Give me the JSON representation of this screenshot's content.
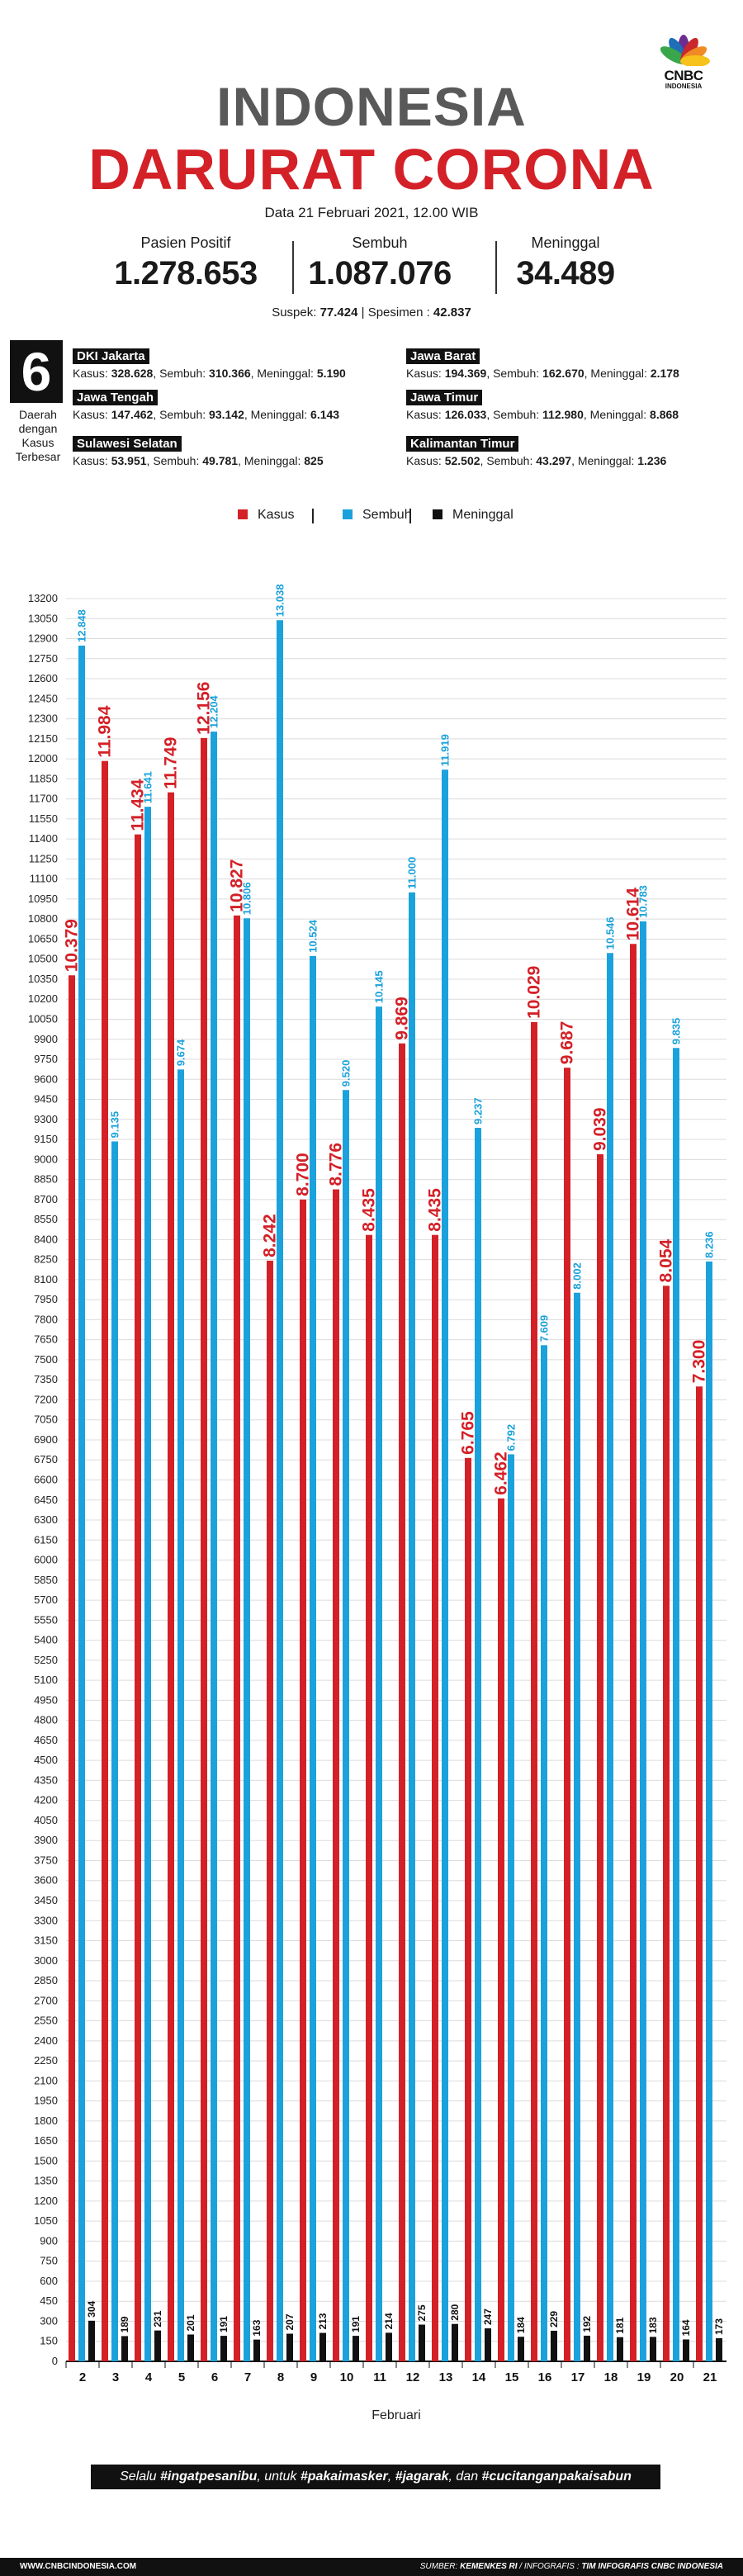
{
  "header": {
    "logo_text": "CNBC",
    "logo_sub": "INDONESIA",
    "title_line1": "INDONESIA",
    "title_line2": "DARURAT CORONA",
    "date": "Data 21 Februari 2021, 12.00 WIB"
  },
  "stats": [
    {
      "label": "Pasien Positif",
      "value": "1.278.653"
    },
    {
      "label": "Sembuh",
      "value": "1.087.076"
    },
    {
      "label": "Meninggal",
      "value": "34.489"
    }
  ],
  "suspek": {
    "label": "Suspek:",
    "value": "77.424",
    "sep": "|",
    "spesimen_label": "Spesimen :",
    "spesimen_value": "42.837"
  },
  "regions_block": {
    "count": "6",
    "caption_lines": [
      "Daerah",
      "dengan",
      "Kasus",
      "Terbesar"
    ],
    "regions": [
      {
        "name": "DKI Jakarta",
        "kasus_label": "Kasus:",
        "kasus": "328.628",
        "sembuh_label": "Sembuh:",
        "sembuh": "310.366",
        "meninggal_label": "Meninggal:",
        "meninggal": "5.190"
      },
      {
        "name": "Jawa Barat",
        "kasus_label": "Kasus:",
        "kasus": "194.369",
        "sembuh_label": "Sembuh:",
        "sembuh": "162.670",
        "meninggal_label": "Meninggal:",
        "meninggal": "2.178"
      },
      {
        "name": "Jawa Tengah",
        "kasus_label": "Kasus:",
        "kasus": "147.462",
        "sembuh_label": "Sembuh:",
        "sembuh": "93.142",
        "meninggal_label": "Meninggal:",
        "meninggal": "6.143"
      },
      {
        "name": "Jawa Timur",
        "kasus_label": "Kasus:",
        "kasus": "126.033",
        "sembuh_label": "Sembuh:",
        "sembuh": "112.980",
        "meninggal_label": "Meninggal:",
        "meninggal": "8.868"
      },
      {
        "name": "Sulawesi Selatan",
        "kasus_label": "Kasus:",
        "kasus": "53.951",
        "sembuh_label": "Sembuh:",
        "sembuh": "49.781",
        "meninggal_label": "Meninggal:",
        "meninggal": "825"
      },
      {
        "name": "Kalimantan Timur",
        "kasus_label": "Kasus:",
        "kasus": "52.502",
        "sembuh_label": "Sembuh:",
        "sembuh": "43.297",
        "meninggal_label": "Meninggal:",
        "meninggal": "1.236"
      }
    ]
  },
  "legend": [
    {
      "name": "Kasus",
      "color": "#d42027"
    },
    {
      "name": "Sembuh",
      "color": "#1ba2dc"
    },
    {
      "name": "Meninggal",
      "color": "#111111"
    }
  ],
  "chart_data": {
    "type": "bar",
    "xlabel": "Februari",
    "ylabel": "",
    "ylim": [
      0,
      13200
    ],
    "ytick_step": 150,
    "grid": true,
    "categories": [
      "2",
      "3",
      "4",
      "5",
      "6",
      "7",
      "8",
      "9",
      "10",
      "11",
      "12",
      "13",
      "14",
      "15",
      "16",
      "17",
      "18",
      "19",
      "20",
      "21"
    ],
    "series": [
      {
        "name": "Kasus",
        "color": "#d42027",
        "values": [
          10379,
          11984,
          11434,
          11749,
          12156,
          10827,
          8242,
          8700,
          8776,
          8435,
          9869,
          8435,
          6765,
          6462,
          10029,
          9687,
          9039,
          10614,
          8054,
          7300
        ],
        "labels": [
          "10.379",
          "11.984",
          "11.434",
          "11.749",
          "12.156",
          "10.827",
          "8.242",
          "8.700",
          "8.776",
          "8.435",
          "9.869",
          "8.435",
          "6.765",
          "6.462",
          "10.029",
          "9.687",
          "9.039",
          "10.614",
          "8.054",
          "7.300"
        ]
      },
      {
        "name": "Sembuh",
        "color": "#1ba2dc",
        "values": [
          12848,
          9135,
          11641,
          9674,
          12204,
          10806,
          13038,
          10524,
          9520,
          10145,
          11000,
          11919,
          9237,
          6792,
          7609,
          8002,
          10546,
          10783,
          9835,
          8236
        ],
        "labels": [
          "12.848",
          "9.135",
          "11.641",
          "9.674",
          "12.204",
          "10.806",
          "13.038",
          "10.524",
          "9.520",
          "10.145",
          "11.000",
          "11.919",
          "9.237",
          "6.792",
          "7.609",
          "8.002",
          "10.546",
          "10.783",
          "9.835",
          "8.236"
        ]
      },
      {
        "name": "Meninggal",
        "color": "#111111",
        "values": [
          304,
          189,
          231,
          201,
          191,
          163,
          207,
          213,
          191,
          214,
          275,
          280,
          247,
          184,
          229,
          192,
          181,
          183,
          164,
          173
        ],
        "labels": [
          "304",
          "189",
          "231",
          "201",
          "191",
          "163",
          "207",
          "213",
          "191",
          "214",
          "275",
          "280",
          "247",
          "184",
          "229",
          "192",
          "181",
          "183",
          "164",
          "173"
        ]
      }
    ]
  },
  "footnote": {
    "pre": "Selalu ",
    "t1": "#ingatpesanibu",
    "mid": ", untuk ",
    "t2": "#pakaimasker",
    "c1": ", ",
    "t3": "#jagarak",
    "c2": ", dan ",
    "t4": "#cucitanganpakaisabun"
  },
  "footer": {
    "left": "WWW.CNBCINDONESIA.COM",
    "right_pre": "SUMBER: ",
    "right_source": "KEMENKES RI",
    "right_post": " / INFOGRAFIS : ",
    "right_team": "TIM INFOGRAFIS CNBC INDONESIA"
  }
}
